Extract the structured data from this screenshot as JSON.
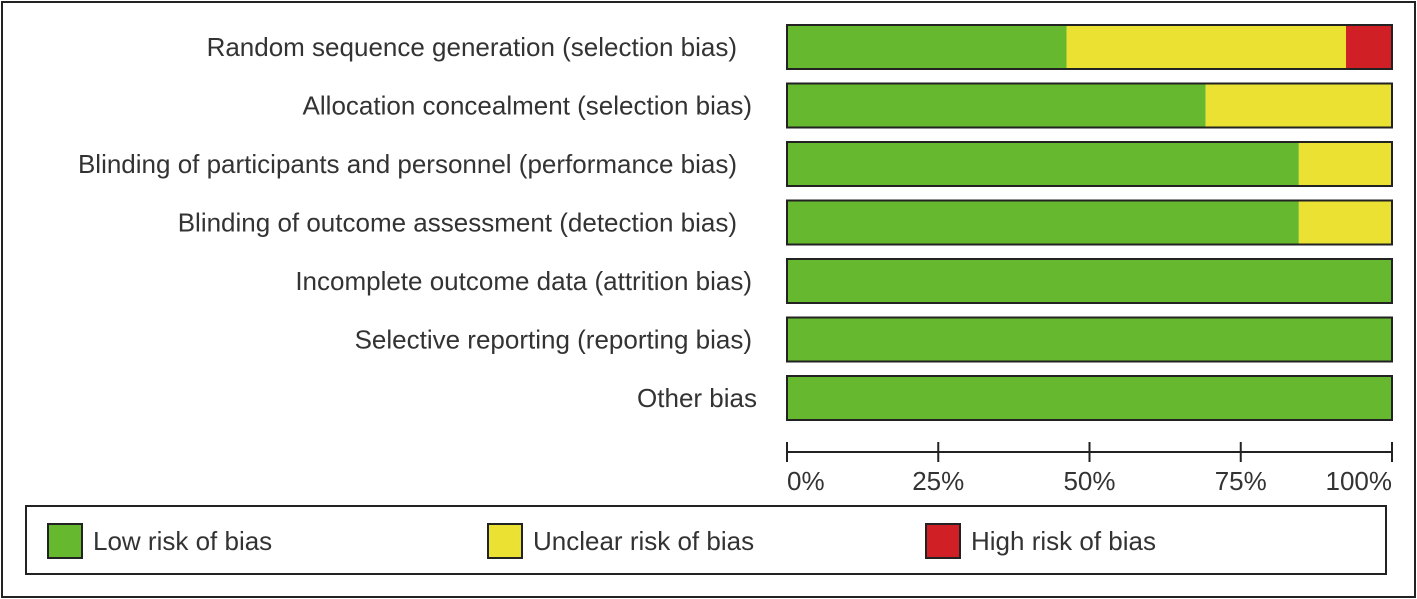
{
  "chart_data": {
    "type": "bar",
    "orientation": "horizontal",
    "stacked": true,
    "categories": [
      "Random sequence generation (selection bias)",
      "Allocation concealment (selection bias)",
      "Blinding of participants and personnel (performance bias)",
      "Blinding of outcome assessment (detection bias)",
      "Incomplete outcome data (attrition bias)",
      "Selective reporting (reporting bias)",
      "Other bias"
    ],
    "series": [
      {
        "name": "Low risk of bias",
        "color": "#66b82e",
        "values": [
          46.2,
          69.2,
          84.6,
          84.6,
          100,
          100,
          100
        ]
      },
      {
        "name": "Unclear risk of bias",
        "color": "#eae132",
        "values": [
          46.2,
          30.8,
          15.4,
          15.4,
          0,
          0,
          0
        ]
      },
      {
        "name": "High risk of bias",
        "color": "#d11f26",
        "values": [
          7.6,
          0,
          0,
          0,
          0,
          0,
          0
        ]
      }
    ],
    "xlim": [
      0,
      100
    ],
    "xticks": [
      "0%",
      "25%",
      "50%",
      "75%",
      "100%"
    ],
    "grid": false,
    "legend_position": "bottom"
  },
  "legend": {
    "low": "Low risk of bias",
    "unclear": "Unclear risk of bias",
    "high": "High risk of bias"
  }
}
